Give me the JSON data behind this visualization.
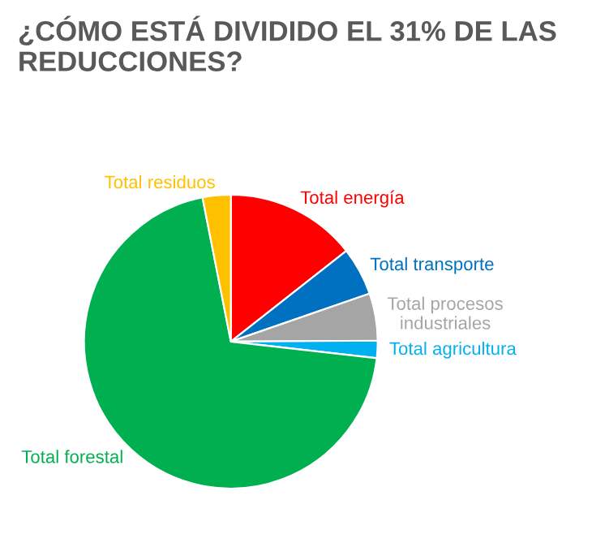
{
  "chart_data": {
    "type": "pie",
    "title": "¿CÓMO ESTÁ DIVIDIDO EL 31% DE LAS REDUCCIONES?",
    "categories": [
      "Total energía",
      "Total transporte",
      "Total procesos industriales",
      "Total agricultura",
      "Total forestal",
      "Total residuos"
    ],
    "values": [
      14.4,
      5.3,
      5.2,
      1.9,
      70.1,
      3.1
    ],
    "colors": [
      "#ff0000",
      "#0070c0",
      "#a5a5a5",
      "#00b0f0",
      "#00b050",
      "#ffc000"
    ],
    "legend": false
  }
}
